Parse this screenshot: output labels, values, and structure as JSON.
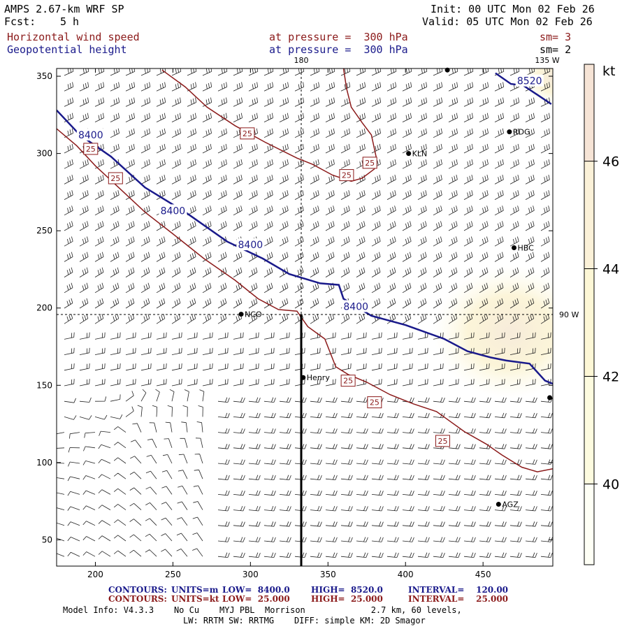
{
  "header": {
    "model": "AMPS 2.67-km WRF SP",
    "fcst_label": "Fcst:",
    "fcst_value": "5 h",
    "init": "Init: 00 UTC Mon 02 Feb 26",
    "valid": "Valid: 05 UTC Mon 02 Feb 26",
    "field1": "Horizontal wind speed",
    "field2": "Geopotential height",
    "pressure1": "at pressure =  300 hPa",
    "pressure2": "at pressure =  300 hPa",
    "sm1": "sm= 3",
    "sm2": "sm= 2"
  },
  "chart_data": {
    "type": "contour",
    "title": "Horizontal wind speed / Geopotential height at 300 hPa",
    "xlim": [
      175,
      495
    ],
    "ylim": [
      33,
      355
    ],
    "x_ticks": [
      200,
      250,
      300,
      350,
      400,
      450
    ],
    "y_ticks": [
      50,
      100,
      150,
      200,
      250,
      300,
      350
    ],
    "meridian_labels": {
      "top_180": "180",
      "top_135w": "135 W",
      "right_90w": "90 W"
    },
    "colorbar": {
      "unit": "kt",
      "ticks": [
        40,
        42,
        44,
        46
      ],
      "range": [
        38.5,
        47.8
      ]
    },
    "height_contours": [
      {
        "label": "8400",
        "points": [
          [
            175,
            328
          ],
          [
            190,
            312
          ],
          [
            210,
            298
          ],
          [
            232,
            278
          ],
          [
            258,
            262
          ],
          [
            285,
            243
          ],
          [
            308,
            232
          ],
          [
            325,
            222
          ],
          [
            345,
            216
          ],
          [
            357,
            215
          ],
          [
            360,
            206
          ],
          [
            378,
            195
          ],
          [
            400,
            189
          ],
          [
            425,
            180
          ],
          [
            440,
            172
          ],
          [
            455,
            168
          ],
          [
            465,
            166
          ],
          [
            480,
            164
          ],
          [
            490,
            153
          ],
          [
            495,
            151
          ]
        ]
      },
      {
        "label": "8520",
        "points": [
          [
            458,
            352
          ],
          [
            468,
            345
          ],
          [
            476,
            344
          ],
          [
            485,
            338
          ],
          [
            494,
            332
          ]
        ]
      }
    ],
    "height_labels": [
      {
        "text": "8400",
        "x": 197,
        "y": 312
      },
      {
        "text": "8400",
        "x": 250,
        "y": 263
      },
      {
        "text": "8400",
        "x": 300,
        "y": 241
      },
      {
        "text": "8400",
        "x": 368,
        "y": 201
      },
      {
        "text": "8520",
        "x": 480,
        "y": 347
      }
    ],
    "wind_contours": [
      {
        "label": "25",
        "points": [
          [
            175,
            316
          ],
          [
            188,
            305
          ],
          [
            200,
            292
          ],
          [
            215,
            278
          ],
          [
            232,
            262
          ],
          [
            250,
            248
          ],
          [
            270,
            232
          ],
          [
            290,
            218
          ],
          [
            305,
            206
          ],
          [
            318,
            199
          ],
          [
            330,
            198
          ],
          [
            337,
            188
          ],
          [
            348,
            180
          ],
          [
            355,
            162
          ],
          [
            363,
            157
          ],
          [
            375,
            152
          ],
          [
            390,
            144
          ],
          [
            405,
            138
          ],
          [
            420,
            133
          ],
          [
            438,
            120
          ],
          [
            452,
            112
          ],
          [
            462,
            105
          ],
          [
            475,
            97
          ],
          [
            485,
            94
          ],
          [
            495,
            96
          ]
        ]
      },
      {
        "label": "25",
        "points": [
          [
            243,
            354
          ],
          [
            258,
            343
          ],
          [
            272,
            330
          ],
          [
            290,
            318
          ],
          [
            310,
            307
          ],
          [
            330,
            297
          ],
          [
            340,
            293
          ],
          [
            353,
            286
          ],
          [
            365,
            282
          ],
          [
            372,
            284
          ],
          [
            380,
            290
          ]
        ]
      },
      {
        "label": "25",
        "points": [
          [
            360,
            355
          ],
          [
            362,
            342
          ],
          [
            365,
            330
          ],
          [
            372,
            320
          ],
          [
            378,
            312
          ],
          [
            381,
            298
          ],
          [
            380,
            290
          ]
        ]
      }
    ],
    "wind_labels": [
      {
        "text": "25",
        "x": 197,
        "y": 303
      },
      {
        "text": "25",
        "x": 213,
        "y": 284
      },
      {
        "text": "25",
        "x": 298,
        "y": 313
      },
      {
        "text": "25",
        "x": 362,
        "y": 286
      },
      {
        "text": "25",
        "x": 377,
        "y": 294
      },
      {
        "text": "25",
        "x": 363,
        "y": 153
      },
      {
        "text": "25",
        "x": 380,
        "y": 139
      },
      {
        "text": "25",
        "x": 424,
        "y": 114
      }
    ],
    "stations": [
      {
        "name": "KLN",
        "x": 402,
        "y": 300
      },
      {
        "name": "RDG",
        "x": 467,
        "y": 314
      },
      {
        "name": "HBC",
        "x": 470,
        "y": 239
      },
      {
        "name": "NCO",
        "x": 294,
        "y": 196
      },
      {
        "name": "Henry",
        "x": 334,
        "y": 155
      },
      {
        "name": "AGZ",
        "x": 460,
        "y": 73
      },
      {
        "name": "",
        "x": 493,
        "y": 142
      },
      {
        "name": "",
        "x": 427,
        "y": 354
      }
    ]
  },
  "footer": {
    "contours_label": "CONTOURS:",
    "line1_units": "UNITS=m",
    "line1_low": "LOW=  8400.0",
    "line1_high": "HIGH=  8520.0",
    "line1_interval": "INTERVAL=    120.00",
    "line2_units": "UNITS=kt",
    "line2_low": "LOW=  25.000",
    "line2_high": "HIGH=  25.000",
    "line2_interval": "INTERVAL=    25.000",
    "model_info": "Model Info: V4.3.3    No Cu    MYJ PBL  Morrison             2.7 km, 60 levels,",
    "physics": "LW: RRTM SW: RRTMG    DIFF: simple KM: 2D Smagor"
  }
}
